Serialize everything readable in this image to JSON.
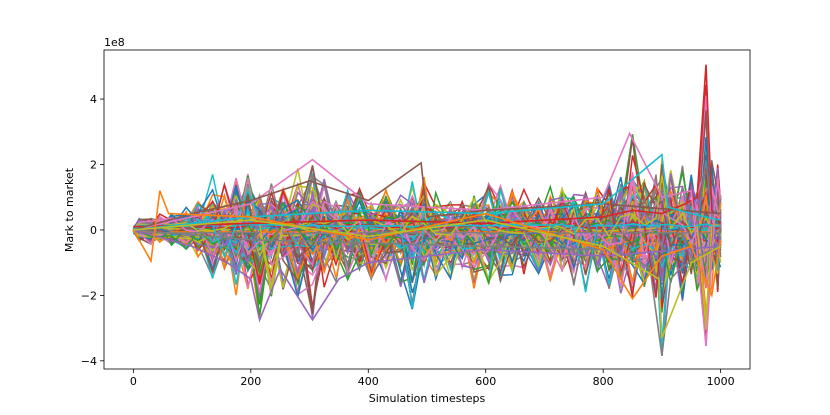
{
  "chart_data": {
    "type": "line",
    "title": "",
    "xlabel": "Simulation timesteps",
    "ylabel": "Mark to market",
    "y_scale_label": "1e8",
    "xlim": [
      -50,
      1050
    ],
    "ylim": [
      -4.25,
      5.5
    ],
    "x_ticks": [
      0,
      200,
      400,
      600,
      800,
      1000
    ],
    "y_ticks": [
      -4,
      -2,
      0,
      2,
      4
    ],
    "y_tick_labels": [
      "−4",
      "−2",
      "0",
      "2",
      "4"
    ],
    "grid": false,
    "legend": "none",
    "series_count_estimate": 200,
    "x": [
      0,
      10,
      30,
      45,
      65,
      90,
      110,
      135,
      155,
      175,
      195,
      215,
      235,
      255,
      280,
      305,
      325,
      345,
      365,
      385,
      405,
      430,
      455,
      475,
      495,
      515,
      540,
      560,
      580,
      605,
      625,
      645,
      665,
      690,
      710,
      730,
      750,
      770,
      790,
      810,
      830,
      850,
      870,
      890,
      900,
      915,
      935,
      950,
      960,
      975,
      985,
      995,
      1000
    ],
    "envelope_upper": [
      0.1,
      0.35,
      0.4,
      0.5,
      0.55,
      0.7,
      0.9,
      1.8,
      1.4,
      1.6,
      1.8,
      1.7,
      1.5,
      1.3,
      1.9,
      2.2,
      1.6,
      1.2,
      1.4,
      1.3,
      1.1,
      1.3,
      1.2,
      1.6,
      2.05,
      1.2,
      1.0,
      1.3,
      1.2,
      1.6,
      1.4,
      1.4,
      1.3,
      1.0,
      1.4,
      1.5,
      1.5,
      1.2,
      1.4,
      1.6,
      1.7,
      2.95,
      2.1,
      1.7,
      2.3,
      1.9,
      2.0,
      1.7,
      1.5,
      5.05,
      2.3,
      2.0,
      1.1
    ],
    "envelope_lower": [
      -0.1,
      -0.35,
      -0.45,
      -0.4,
      -0.5,
      -0.6,
      -0.9,
      -1.5,
      -1.2,
      -2.0,
      -1.9,
      -2.75,
      -2.1,
      -1.9,
      -2.15,
      -2.75,
      -1.8,
      -1.7,
      -1.6,
      -1.8,
      -1.6,
      -1.7,
      -1.8,
      -2.45,
      -1.7,
      -1.5,
      -1.6,
      -1.8,
      -1.9,
      -1.7,
      -1.6,
      -1.6,
      -1.8,
      -1.6,
      -1.6,
      -1.8,
      -1.7,
      -2.0,
      -1.6,
      -1.8,
      -2.0,
      -2.1,
      -1.8,
      -2.2,
      -3.85,
      -2.0,
      -2.2,
      -1.8,
      -2.2,
      -3.55,
      -2.0,
      -1.9,
      -1.2
    ],
    "highlighted_series": [
      {
        "color": "#d62728",
        "x": [
          0,
          200,
          400,
          600,
          800,
          850,
          900,
          940,
          960,
          975,
          985,
          1000
        ],
        "values": [
          0.1,
          0.2,
          0.3,
          0.2,
          0.4,
          0.6,
          0.5,
          0.8,
          1.0,
          5.05,
          0.6,
          0.2
        ]
      },
      {
        "color": "#7f7f7f",
        "x": [
          0,
          200,
          400,
          600,
          800,
          850,
          880,
          900,
          915,
          930,
          960,
          1000
        ],
        "values": [
          0.0,
          -0.3,
          -0.4,
          -0.5,
          -0.6,
          -0.8,
          -1.2,
          -3.85,
          -1.5,
          -1.2,
          -0.8,
          -0.5
        ]
      },
      {
        "color": "#e377c2",
        "x": [
          0,
          200,
          305,
          400,
          600,
          800,
          845,
          900,
          950,
          975,
          990,
          1000
        ],
        "values": [
          0.0,
          0.8,
          2.15,
          0.8,
          0.6,
          1.0,
          2.95,
          1.0,
          1.2,
          -3.55,
          0.5,
          0.3
        ]
      },
      {
        "color": "#8c564b",
        "x": [
          0,
          100,
          200,
          300,
          400,
          490,
          500,
          600,
          800,
          1000
        ],
        "values": [
          0.0,
          0.5,
          0.9,
          1.5,
          0.9,
          2.05,
          0.4,
          0.6,
          0.8,
          0.5
        ]
      },
      {
        "color": "#9467bd",
        "x": [
          0,
          100,
          160,
          200,
          215,
          250,
          305,
          350,
          400,
          500,
          600,
          800,
          1000
        ],
        "values": [
          0.0,
          -0.5,
          -1.0,
          -1.5,
          -2.75,
          -1.2,
          -2.75,
          -1.5,
          -1.0,
          -0.8,
          -0.6,
          -0.8,
          -0.5
        ]
      },
      {
        "color": "#17becf",
        "x": [
          0,
          200,
          400,
          600,
          800,
          900,
          910,
          950,
          1000
        ],
        "values": [
          0.0,
          0.4,
          0.6,
          0.5,
          0.8,
          2.3,
          0.7,
          0.5,
          0.3
        ]
      },
      {
        "color": "#ff7f0e",
        "x": [
          0,
          30,
          45,
          60,
          200,
          400,
          600,
          800,
          850,
          900,
          950,
          985,
          1000
        ],
        "values": [
          0.0,
          -0.95,
          1.2,
          0.5,
          0.4,
          -0.3,
          0.5,
          -0.6,
          -2.1,
          -0.8,
          -0.5,
          -2.0,
          -0.3
        ]
      },
      {
        "color": "#bcbd22",
        "x": [
          0,
          200,
          400,
          600,
          800,
          895,
          900,
          950,
          1000
        ],
        "values": [
          0.0,
          0.3,
          -0.2,
          0.3,
          -0.5,
          -1.5,
          -3.3,
          -1.0,
          -0.5
        ]
      }
    ]
  }
}
